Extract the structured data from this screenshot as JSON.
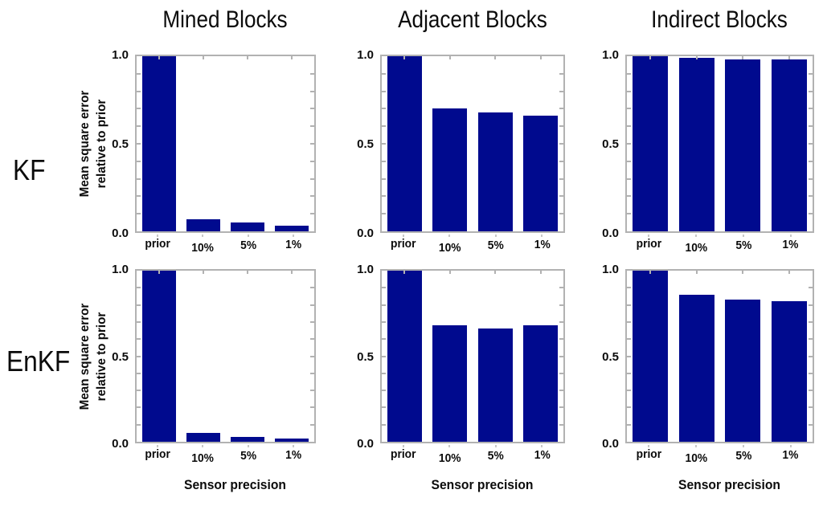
{
  "figure": {
    "column_titles": [
      "Mined Blocks",
      "Adjacent Blocks",
      "Indirect Blocks"
    ],
    "row_labels": [
      "KF",
      "EnKF"
    ],
    "y_axis_label": [
      "Mean square error",
      "relative to prior"
    ],
    "x_axis_label": "Sensor precision",
    "colors": {
      "bar": "#000a8e",
      "axis": "#b2b2b2",
      "text": "#000000",
      "background": "#ffffff"
    }
  },
  "chart_data": [
    {
      "type": "bar",
      "row": "KF",
      "column": "Mined Blocks",
      "categories": [
        "prior",
        "10%",
        "5%",
        "1%"
      ],
      "values": [
        1.0,
        0.07,
        0.05,
        0.03
      ],
      "xlabel": "Sensor precision",
      "ylabel": "Mean square error relative to prior",
      "ylim": [
        0.0,
        1.0
      ],
      "yticks": [
        "0.0",
        "0.5",
        "1.0"
      ],
      "grid": "off",
      "legend": "none"
    },
    {
      "type": "bar",
      "row": "KF",
      "column": "Adjacent Blocks",
      "categories": [
        "prior",
        "10%",
        "5%",
        "1%"
      ],
      "values": [
        1.0,
        0.7,
        0.68,
        0.66
      ],
      "xlabel": "Sensor precision",
      "ylabel": "Mean square error relative to prior",
      "ylim": [
        0.0,
        1.0
      ],
      "yticks": [
        "0.0",
        "0.5",
        "1.0"
      ],
      "grid": "off",
      "legend": "none"
    },
    {
      "type": "bar",
      "row": "KF",
      "column": "Indirect Blocks",
      "categories": [
        "prior",
        "10%",
        "5%",
        "1%"
      ],
      "values": [
        1.0,
        0.99,
        0.98,
        0.98
      ],
      "xlabel": "Sensor precision",
      "ylabel": "Mean square error relative to prior",
      "ylim": [
        0.0,
        1.0
      ],
      "yticks": [
        "0.0",
        "0.5",
        "1.0"
      ],
      "grid": "off",
      "legend": "none"
    },
    {
      "type": "bar",
      "row": "EnKF",
      "column": "Mined Blocks",
      "categories": [
        "prior",
        "10%",
        "5%",
        "1%"
      ],
      "values": [
        1.0,
        0.05,
        0.03,
        0.02
      ],
      "xlabel": "Sensor precision",
      "ylabel": "Mean square error relative to prior",
      "ylim": [
        0.0,
        1.0
      ],
      "yticks": [
        "0.0",
        "0.5",
        "1.0"
      ],
      "grid": "off",
      "legend": "none"
    },
    {
      "type": "bar",
      "row": "EnKF",
      "column": "Adjacent Blocks",
      "categories": [
        "prior",
        "10%",
        "5%",
        "1%"
      ],
      "values": [
        1.0,
        0.68,
        0.66,
        0.68
      ],
      "xlabel": "Sensor precision",
      "ylabel": "Mean square error relative to prior",
      "ylim": [
        0.0,
        1.0
      ],
      "yticks": [
        "0.0",
        "0.5",
        "1.0"
      ],
      "grid": "off",
      "legend": "none"
    },
    {
      "type": "bar",
      "row": "EnKF",
      "column": "Indirect Blocks",
      "categories": [
        "prior",
        "10%",
        "5%",
        "1%"
      ],
      "values": [
        1.0,
        0.86,
        0.83,
        0.82
      ],
      "xlabel": "Sensor precision",
      "ylabel": "Mean square error relative to prior",
      "ylim": [
        0.0,
        1.0
      ],
      "yticks": [
        "0.0",
        "0.5",
        "1.0"
      ],
      "grid": "off",
      "legend": "none"
    }
  ]
}
